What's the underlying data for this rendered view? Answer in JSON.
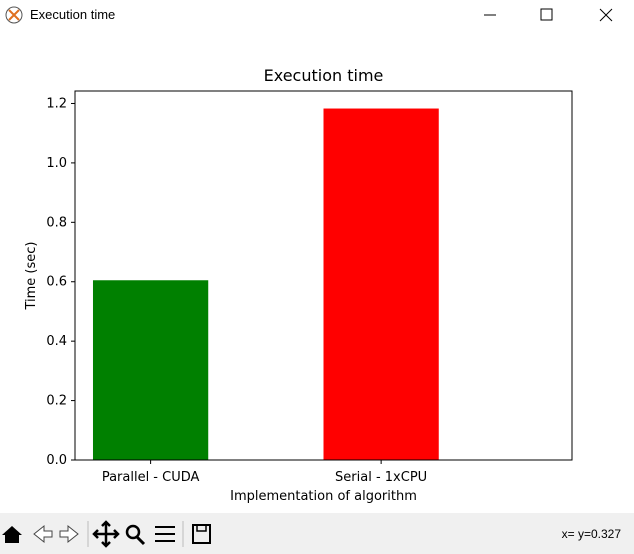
{
  "window": {
    "title": "Execution time"
  },
  "chart_data": {
    "type": "bar",
    "title": "Execution time",
    "x_label": "Implementation of algorithm",
    "y_label": "Time (sec)",
    "categories": [
      "Parallel - CUDA",
      "Serial - 1xCPU"
    ],
    "values": [
      0.605,
      1.183
    ],
    "colors": [
      "#008000",
      "#ff0000"
    ],
    "ylim": [
      0,
      1.242
    ],
    "yticks": [
      {
        "value": 0,
        "label": "0.0"
      },
      {
        "value": 0.2,
        "label": "0.2"
      },
      {
        "value": 0.4,
        "label": "0.4"
      },
      {
        "value": 0.6,
        "label": "0.6"
      },
      {
        "value": 0.8,
        "label": "0.8"
      },
      {
        "value": 1,
        "label": "1.0"
      },
      {
        "value": 1.2,
        "label": "1.2"
      }
    ]
  },
  "toolbar": {
    "status": "x= y=0.327"
  }
}
